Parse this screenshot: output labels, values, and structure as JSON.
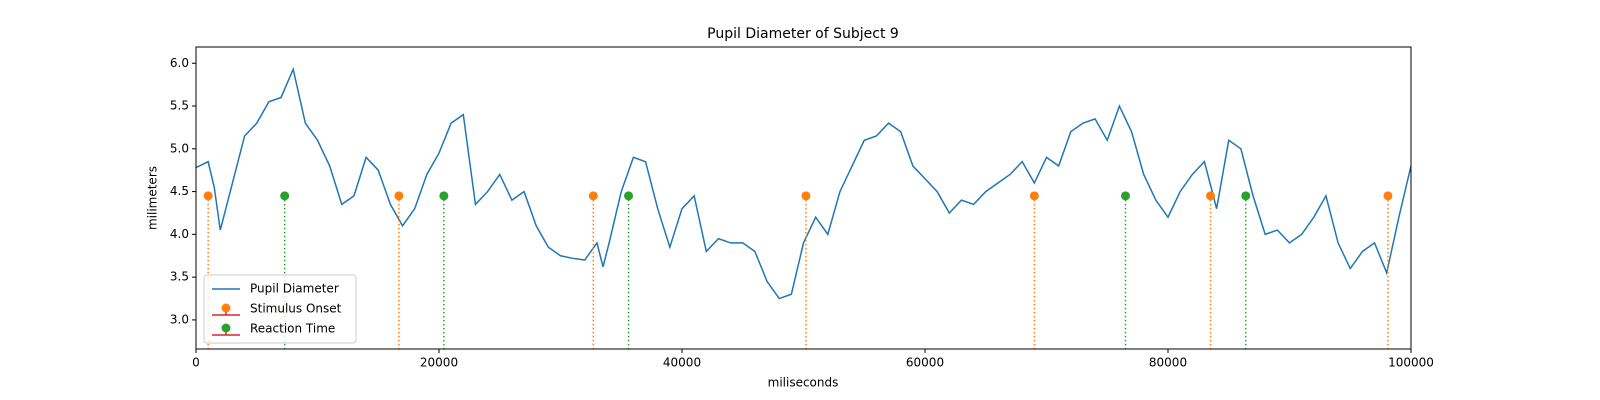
{
  "chart_data": {
    "type": "line",
    "title": "Pupil Diameter of Subject 9",
    "xlabel": "miliseconds",
    "ylabel": "milimeters",
    "xlim": [
      0,
      100000
    ],
    "ylim": [
      2.66,
      6.19
    ],
    "xticks": [
      0,
      20000,
      40000,
      60000,
      80000,
      100000
    ],
    "yticks": [
      {
        "value": 3,
        "label": "3.0"
      },
      {
        "value": 3.5,
        "label": "3.5"
      },
      {
        "value": 4,
        "label": "4.0"
      },
      {
        "value": 4.5,
        "label": "4.5"
      },
      {
        "value": 5,
        "label": "5.0"
      },
      {
        "value": 5.5,
        "label": "5.5"
      },
      {
        "value": 6,
        "label": "6.0"
      }
    ],
    "legend": "lower left",
    "series": [
      {
        "name": "Pupil Diameter",
        "style": "line",
        "color": "#1f77b4",
        "x": [
          0,
          1000,
          1500,
          2000,
          3000,
          4000,
          5000,
          6000,
          7000,
          8000,
          9000,
          10000,
          11000,
          12000,
          13000,
          14000,
          15000,
          16000,
          17000,
          18000,
          19000,
          20000,
          21000,
          22000,
          23000,
          24000,
          25000,
          26000,
          27000,
          28000,
          29000,
          30000,
          31000,
          32000,
          33000,
          33500,
          34000,
          35000,
          36000,
          37000,
          38000,
          39000,
          40000,
          41000,
          42000,
          43000,
          44000,
          45000,
          46000,
          47000,
          48000,
          49000,
          50000,
          51000,
          52000,
          53000,
          54000,
          55000,
          56000,
          57000,
          58000,
          59000,
          60000,
          61000,
          62000,
          63000,
          64000,
          65000,
          66000,
          67000,
          68000,
          69000,
          70000,
          71000,
          72000,
          73000,
          74000,
          75000,
          76000,
          77000,
          78000,
          79000,
          80000,
          81000,
          82000,
          83000,
          84000,
          85000,
          86000,
          87000,
          88000,
          89000,
          90000,
          91000,
          92000,
          93000,
          94000,
          95000,
          96000,
          97000,
          98000,
          99000,
          100000
        ],
        "values": [
          4.78,
          4.85,
          4.55,
          4.05,
          4.6,
          5.15,
          5.3,
          5.55,
          5.6,
          5.93,
          5.3,
          5.1,
          4.8,
          4.35,
          4.45,
          4.9,
          4.75,
          4.35,
          4.1,
          4.3,
          4.7,
          4.95,
          5.3,
          5.4,
          4.35,
          4.5,
          4.7,
          4.4,
          4.5,
          4.1,
          3.85,
          3.75,
          3.72,
          3.7,
          3.9,
          3.62,
          3.9,
          4.5,
          4.9,
          4.85,
          4.3,
          3.85,
          4.3,
          4.45,
          3.8,
          3.95,
          3.9,
          3.9,
          3.8,
          3.45,
          3.25,
          3.3,
          3.9,
          4.2,
          4.0,
          4.5,
          4.8,
          5.1,
          5.15,
          5.3,
          5.2,
          4.8,
          4.65,
          4.5,
          4.25,
          4.4,
          4.35,
          4.5,
          4.6,
          4.7,
          4.85,
          4.6,
          4.9,
          4.8,
          5.2,
          5.3,
          5.35,
          5.1,
          5.5,
          5.2,
          4.7,
          4.4,
          4.2,
          4.5,
          4.7,
          4.85,
          4.3,
          5.1,
          5.0,
          4.45,
          4.0,
          4.05,
          3.9,
          4.0,
          4.2,
          4.45,
          3.9,
          3.6,
          3.8,
          3.9,
          3.55,
          4.2,
          4.8
        ]
      },
      {
        "name": "Stimulus Onset",
        "style": "stem",
        "color": "#ff7f0e",
        "baseline_color": "#d62728",
        "x": [
          1000,
          16700,
          32700,
          50200,
          69000,
          83500,
          98100
        ],
        "values": [
          4.45,
          4.45,
          4.45,
          4.45,
          4.45,
          4.45,
          4.45
        ]
      },
      {
        "name": "Reaction Time",
        "style": "stem",
        "color": "#2ca02c",
        "baseline_color": "#d62728",
        "x": [
          7300,
          20400,
          35600,
          76500,
          86400
        ],
        "values": [
          4.45,
          4.45,
          4.45,
          4.45,
          4.45
        ]
      }
    ]
  }
}
